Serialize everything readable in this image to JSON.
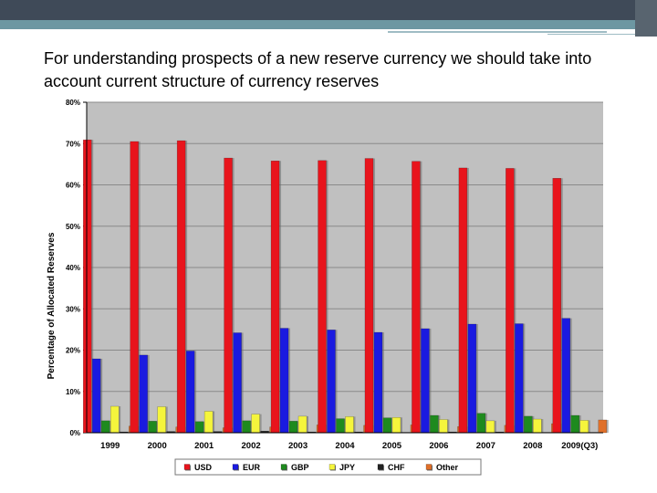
{
  "slide": {
    "title": "For understanding prospects of a new reserve currency we should take into account current structure of currency reserves"
  },
  "chart_data": {
    "type": "bar",
    "title": "",
    "xlabel": "",
    "ylabel": "Percentage of Allocated Reserves",
    "ylim": [
      0,
      80
    ],
    "yticks": [
      "0%",
      "10%",
      "20%",
      "30%",
      "40%",
      "50%",
      "60%",
      "70%",
      "80%"
    ],
    "grid": true,
    "legend_position": "bottom",
    "categories": [
      "1999",
      "2000",
      "2001",
      "2002",
      "2003",
      "2004",
      "2005",
      "2006",
      "2007",
      "2008",
      "2009(Q3)"
    ],
    "series": [
      {
        "name": "USD",
        "color": "#e8141c",
        "values": [
          70.9,
          70.5,
          70.7,
          66.5,
          65.8,
          65.9,
          66.4,
          65.7,
          64.1,
          64.0,
          61.6
        ]
      },
      {
        "name": "EUR",
        "color": "#1a1ae0",
        "values": [
          17.9,
          18.8,
          19.8,
          24.2,
          25.3,
          24.9,
          24.3,
          25.2,
          26.3,
          26.4,
          27.7
        ]
      },
      {
        "name": "GBP",
        "color": "#1e8a1e",
        "values": [
          2.9,
          2.8,
          2.7,
          2.9,
          2.8,
          3.4,
          3.6,
          4.2,
          4.7,
          4.0,
          4.2
        ]
      },
      {
        "name": "JPY",
        "color": "#f5f53c",
        "values": [
          6.4,
          6.3,
          5.2,
          4.5,
          4.0,
          3.9,
          3.7,
          3.2,
          2.9,
          3.3,
          3.0
        ]
      },
      {
        "name": "CHF",
        "color": "#222222",
        "values": [
          0.2,
          0.3,
          0.3,
          0.4,
          0.2,
          0.2,
          0.1,
          0.2,
          0.2,
          0.1,
          0.1
        ]
      },
      {
        "name": "Other",
        "color": "#e0702a",
        "values": [
          1.6,
          1.4,
          1.2,
          1.4,
          1.9,
          1.8,
          1.9,
          1.5,
          1.8,
          2.2,
          3.1
        ]
      }
    ]
  }
}
